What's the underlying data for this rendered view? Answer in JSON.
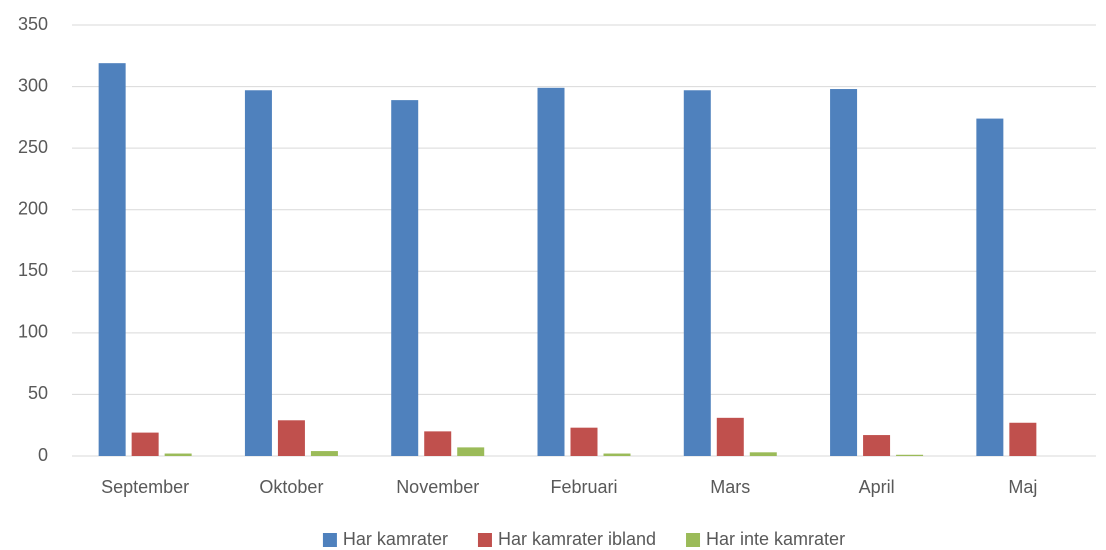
{
  "chart_data": {
    "type": "bar",
    "categories": [
      "September",
      "Oktober",
      "November",
      "Februari",
      "Mars",
      "April",
      "Maj"
    ],
    "series": [
      {
        "name": "Har kamrater",
        "color": "#4f81bd",
        "values": [
          319,
          297,
          289,
          299,
          297,
          298,
          274
        ]
      },
      {
        "name": "Har kamrater ibland",
        "color": "#c0504d",
        "values": [
          19,
          29,
          20,
          23,
          31,
          17,
          27
        ]
      },
      {
        "name": "Har inte kamrater",
        "color": "#9bbb59",
        "values": [
          2,
          4,
          7,
          2,
          3,
          1,
          0
        ]
      }
    ],
    "ylim": [
      0,
      350
    ],
    "yticks": [
      0,
      50,
      100,
      150,
      200,
      250,
      300,
      350
    ],
    "grid": true,
    "legend": "bottom"
  }
}
